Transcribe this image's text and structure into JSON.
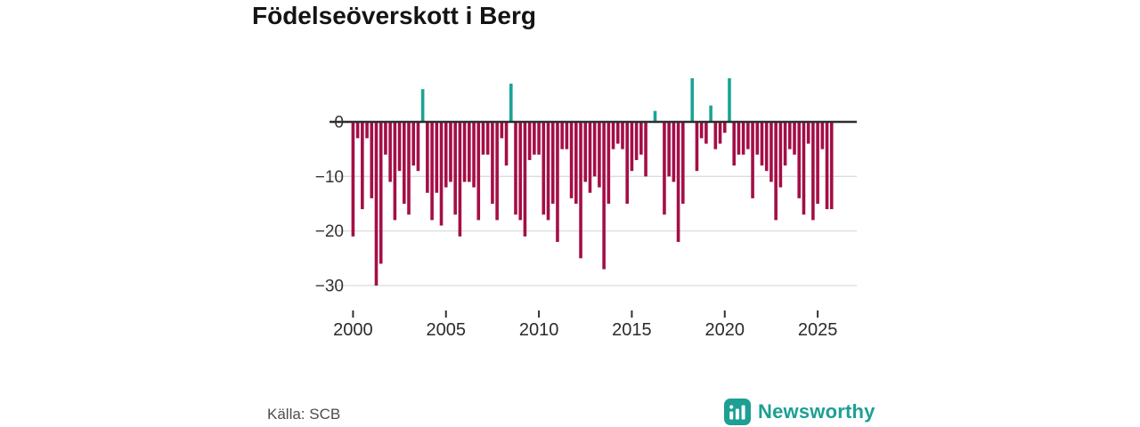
{
  "title": "Födelseöverskott i Berg",
  "source": "Källa: SCB",
  "branding": {
    "name": "Newsworthy",
    "color": "#1d9f94"
  },
  "chart_data": {
    "type": "bar",
    "title": "Födelseöverskott i Berg",
    "xlabel": "",
    "ylabel": "",
    "frequency": "quarterly",
    "start_year": 2000,
    "categories_note": "104 quarterly values, 2000Q1 through 2025Q4",
    "values": [
      -21,
      -3,
      -16,
      -3,
      -14,
      -30,
      -26,
      -6,
      -11,
      -18,
      -9,
      -15,
      -17,
      -8,
      -9,
      6,
      -13,
      -18,
      -13,
      -19,
      -12,
      -11,
      -17,
      -21,
      -11,
      -11,
      -12,
      -18,
      -6,
      -6,
      -15,
      -18,
      -3,
      -8,
      7,
      -17,
      -18,
      -21,
      -7,
      -6,
      -6,
      -17,
      -18,
      -15,
      -22,
      -5,
      -5,
      -14,
      -15,
      -25,
      -11,
      -13,
      -10,
      -12,
      -27,
      -15,
      -5,
      -4,
      -5,
      -15,
      -9,
      -7,
      -6,
      -10,
      0,
      2,
      0,
      -17,
      -10,
      -11,
      -22,
      -15,
      0,
      8,
      -9,
      -3,
      -4,
      3,
      -5,
      -4,
      -2,
      8,
      -8,
      -6,
      -6,
      -5,
      -14,
      -6,
      -8,
      -9,
      -11,
      -18,
      -12,
      -8,
      -5,
      -6,
      -14,
      -17,
      -4,
      -18,
      -15,
      -5,
      -16,
      -16
    ],
    "xticks": [
      2000,
      2005,
      2010,
      2015,
      2020,
      2025
    ],
    "ytick_labels": [
      "0",
      "−10",
      "−20",
      "−30"
    ],
    "yticks": [
      0,
      -10,
      -20,
      -30
    ],
    "ylim": [
      -30,
      8
    ],
    "grid": true,
    "legend": false,
    "colors": {
      "negative": "#a40e46",
      "positive": "#1aa396",
      "zero_line": "#2d2d2d",
      "grid_line": "#dcdcdc",
      "tick_text": "#333333"
    }
  }
}
